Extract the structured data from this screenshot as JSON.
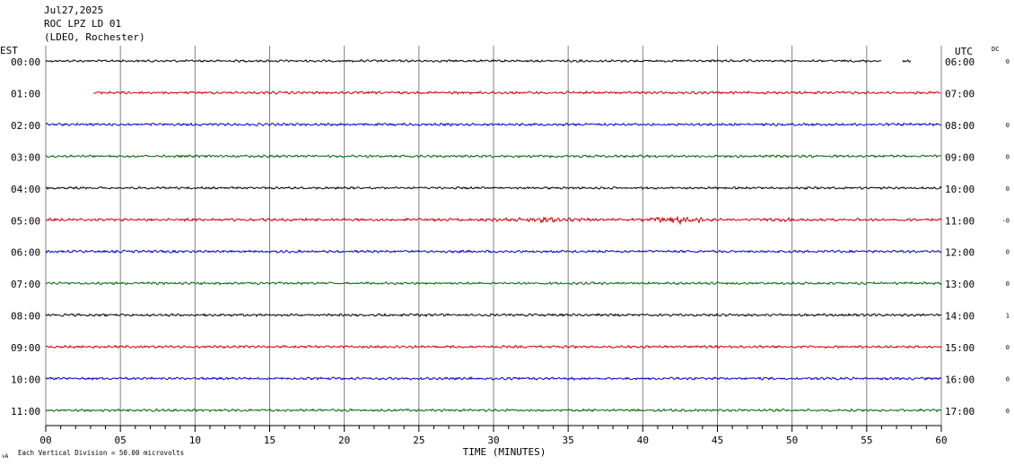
{
  "header": {
    "date": "Jul27,2025",
    "station": "ROC LPZ LD 01",
    "location": "(LDEO, Rochester)"
  },
  "left_axis_label": "EST",
  "right_axis_label": "UTC",
  "dc_label": "DC",
  "footer": {
    "scale_note": "Each Vertical Division =   50.00 microvolts"
  },
  "colors": {
    "trace_cycle": [
      "#000000",
      "#cc0000",
      "#0000cc",
      "#006600"
    ],
    "grid": "#808080",
    "text": "#000000"
  },
  "chart_data": {
    "type": "line",
    "title": "",
    "xlabel": "TIME (MINUTES)",
    "ylabel": "",
    "x_ticks": [
      "00",
      "05",
      "10",
      "15",
      "20",
      "25",
      "30",
      "35",
      "40",
      "45",
      "50",
      "55",
      "60"
    ],
    "xlim": [
      0,
      60
    ],
    "grid": true,
    "rows": [
      {
        "est": "00:00",
        "utc": "06:00",
        "dc": "0",
        "start_min": 0,
        "end_min": 58,
        "gap": [
          56,
          57.4
        ],
        "amp": 0.9
      },
      {
        "est": "01:00",
        "utc": "07:00",
        "dc": "",
        "start_min": 3.2,
        "end_min": 60,
        "gap": null,
        "amp": 1.0
      },
      {
        "est": "02:00",
        "utc": "08:00",
        "dc": "0",
        "start_min": 0,
        "end_min": 60,
        "gap": null,
        "amp": 1.0
      },
      {
        "est": "03:00",
        "utc": "09:00",
        "dc": "0",
        "start_min": 0,
        "end_min": 60,
        "gap": null,
        "amp": 1.0
      },
      {
        "est": "04:00",
        "utc": "10:00",
        "dc": "0",
        "start_min": 0,
        "end_min": 60,
        "gap": null,
        "amp": 0.9
      },
      {
        "est": "05:00",
        "utc": "11:00",
        "dc": "-0",
        "start_min": 0,
        "end_min": 60,
        "gap": null,
        "amp": 1.1,
        "burst": [
          [
            29,
            37,
            2.2
          ],
          [
            40,
            45,
            3.6
          ],
          [
            48,
            51,
            2.0
          ]
        ]
      },
      {
        "est": "06:00",
        "utc": "12:00",
        "dc": "0",
        "start_min": 0,
        "end_min": 60,
        "gap": null,
        "amp": 1.0
      },
      {
        "est": "07:00",
        "utc": "13:00",
        "dc": "0",
        "start_min": 0,
        "end_min": 60,
        "gap": null,
        "amp": 1.0
      },
      {
        "est": "08:00",
        "utc": "14:00",
        "dc": "1",
        "start_min": 0,
        "end_min": 60,
        "gap": null,
        "amp": 1.0
      },
      {
        "est": "09:00",
        "utc": "15:00",
        "dc": "0",
        "start_min": 0,
        "end_min": 60,
        "gap": null,
        "amp": 1.0
      },
      {
        "est": "10:00",
        "utc": "16:00",
        "dc": "0",
        "start_min": 0,
        "end_min": 60,
        "gap": null,
        "amp": 1.0
      },
      {
        "est": "11:00",
        "utc": "17:00",
        "dc": "0",
        "start_min": 0,
        "end_min": 60,
        "gap": null,
        "amp": 1.0
      }
    ]
  }
}
